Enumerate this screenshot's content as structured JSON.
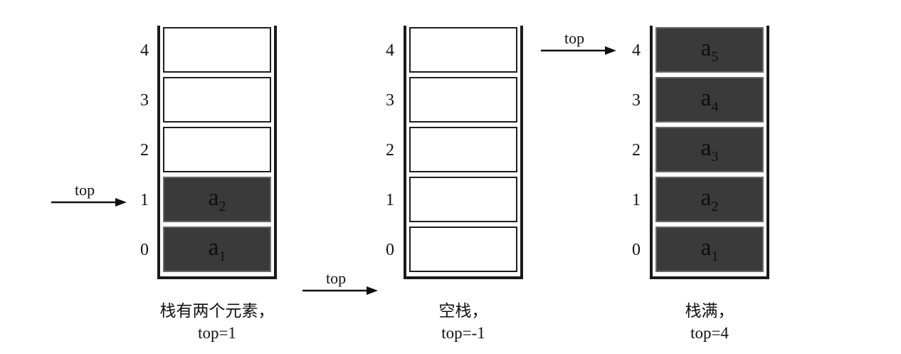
{
  "stacks": [
    {
      "indices": [
        "0",
        "1",
        "2",
        "3",
        "4"
      ],
      "cells": [
        {
          "base": "a",
          "sub": "1",
          "filled": true
        },
        {
          "base": "a",
          "sub": "2",
          "filled": true
        },
        {
          "base": "",
          "sub": "",
          "filled": false
        },
        {
          "base": "",
          "sub": "",
          "filled": false
        },
        {
          "base": "",
          "sub": "",
          "filled": false
        }
      ],
      "pointer_label": "top",
      "caption_line1": "栈有两个元素，",
      "caption_line2": "top=1"
    },
    {
      "indices": [
        "0",
        "1",
        "2",
        "3",
        "4"
      ],
      "cells": [
        {
          "base": "",
          "sub": "",
          "filled": false
        },
        {
          "base": "",
          "sub": "",
          "filled": false
        },
        {
          "base": "",
          "sub": "",
          "filled": false
        },
        {
          "base": "",
          "sub": "",
          "filled": false
        },
        {
          "base": "",
          "sub": "",
          "filled": false
        }
      ],
      "pointer_label": "top",
      "caption_line1": "空栈，",
      "caption_line2": "top=-1"
    },
    {
      "indices": [
        "0",
        "1",
        "2",
        "3",
        "4"
      ],
      "cells": [
        {
          "base": "a",
          "sub": "1",
          "filled": true
        },
        {
          "base": "a",
          "sub": "2",
          "filled": true
        },
        {
          "base": "a",
          "sub": "3",
          "filled": true
        },
        {
          "base": "a",
          "sub": "4",
          "filled": true
        },
        {
          "base": "a",
          "sub": "5",
          "filled": true
        }
      ],
      "pointer_label": "top",
      "caption_line1": "栈满，",
      "caption_line2": "top=4"
    }
  ]
}
